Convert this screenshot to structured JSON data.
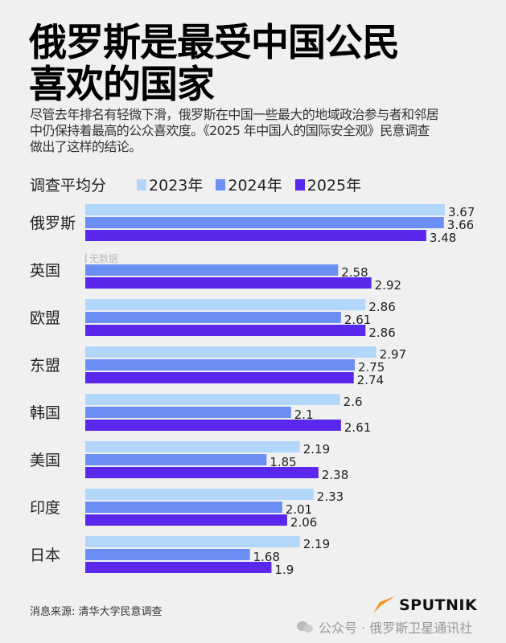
{
  "title_lines": [
    "俄罗斯是最受中国公民",
    "喜欢的国家"
  ],
  "description_lines": [
    "尽管去年排名有轻微下滑，俄罗斯在中国一些最大的地域政治参与者和邻居",
    "中仍保持着最高的公众喜欢度。《2025 年中国人的国际安全观》民意调查",
    "做出了这样的结论。"
  ],
  "colors": {
    "2023": "#b3d6fb",
    "2024": "#6b8ef5",
    "2025": "#5a27ec",
    "background": "#f0f0f0",
    "logo_accent": "#f7931e"
  },
  "chart_data": {
    "type": "bar",
    "orientation": "horizontal",
    "ylabel": "调查平均分",
    "legend_position": "top",
    "categories": [
      "俄罗斯",
      "英国",
      "欧盟",
      "东盟",
      "韩国",
      "美国",
      "印度",
      "日本"
    ],
    "series": [
      {
        "name": "2023年",
        "values": [
          3.67,
          null,
          2.86,
          2.97,
          2.6,
          2.19,
          2.33,
          2.19
        ]
      },
      {
        "name": "2024年",
        "values": [
          3.66,
          2.58,
          2.61,
          2.75,
          2.1,
          1.85,
          2.01,
          1.68
        ]
      },
      {
        "name": "2025年",
        "values": [
          3.48,
          2.92,
          2.86,
          2.74,
          2.61,
          2.38,
          2.06,
          1.9
        ]
      }
    ],
    "missing_label": "无数据",
    "grid": false
  },
  "footer": {
    "source": "消息来源: 清华大学民意调查",
    "logo": "SPUTNIK",
    "watermark": "公众号 · 俄罗斯卫星通讯社"
  }
}
